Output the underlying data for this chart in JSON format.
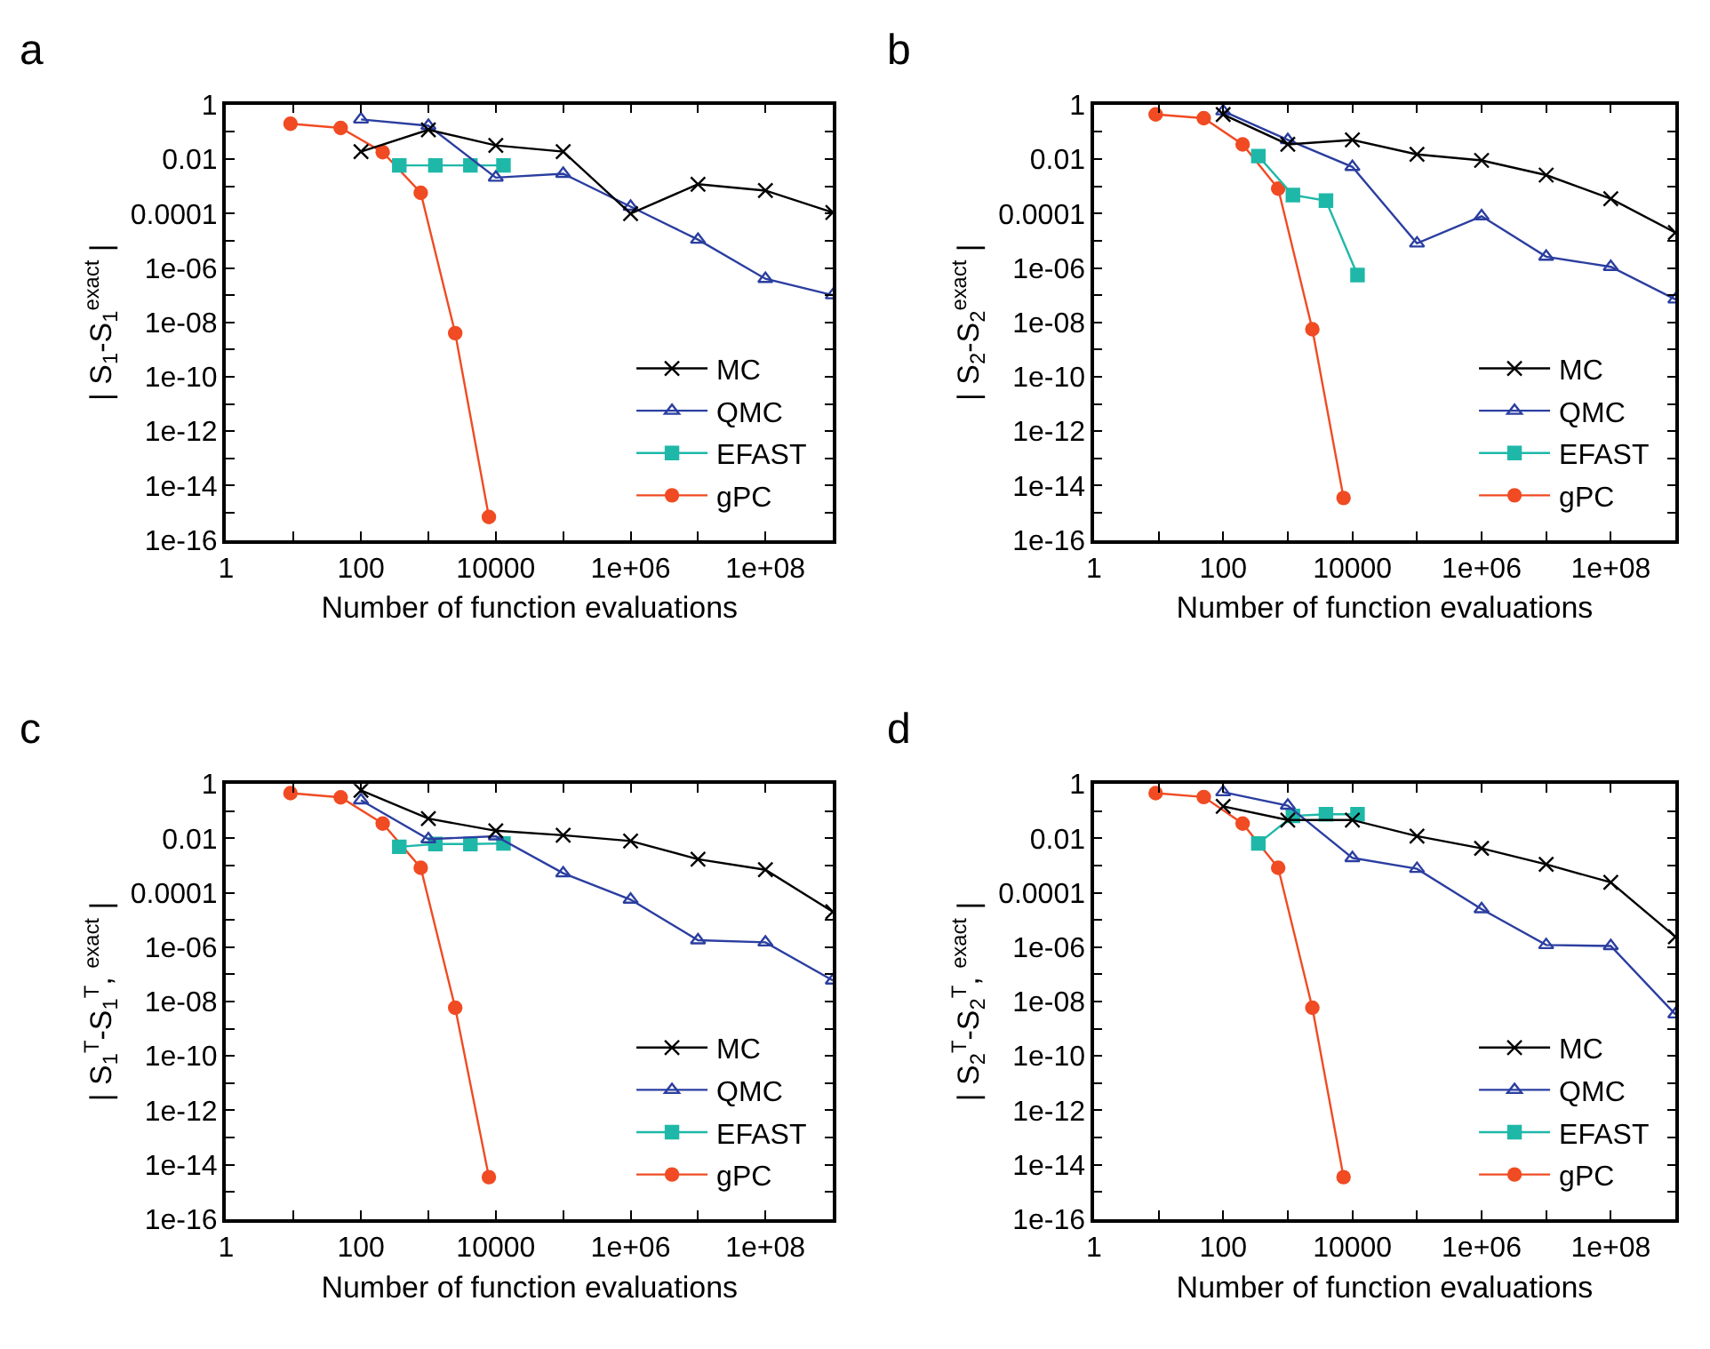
{
  "chart_data": [
    {
      "type": "line",
      "title": "a",
      "xlabel": "Number of function evaluations",
      "ylabel": "| S$_{1}$-S$_{1}$$^{exact}$ |",
      "log": "xy",
      "legend": "bottom right",
      "xlim": [
        1,
        1000000000
      ],
      "ylim": [
        1e-16,
        1
      ],
      "xticks": [
        1,
        {
          "value": 10,
          "label": null
        },
        100,
        {
          "value": 1000,
          "label": null
        },
        10000,
        {
          "value": 100000,
          "label": null
        },
        {
          "value": 1000000,
          "label": "1e+06"
        },
        {
          "value": 10000000,
          "label": null
        },
        {
          "value": 100000000,
          "label": "1e+08"
        }
      ],
      "yticks": [
        {
          "value": 1e-16,
          "label": "1e-16"
        },
        {
          "value": 1e-15,
          "label": null
        },
        {
          "value": 1e-14,
          "label": "1e-14"
        },
        {
          "value": 1e-13,
          "label": null
        },
        {
          "value": 1e-12,
          "label": "1e-12"
        },
        {
          "value": 1e-11,
          "label": null
        },
        {
          "value": 1e-10,
          "label": "1e-10"
        },
        {
          "value": 1e-09,
          "label": null
        },
        {
          "value": 1e-08,
          "label": "1e-08"
        },
        {
          "value": 1e-07,
          "label": null
        },
        {
          "value": 1e-06,
          "label": "1e-06"
        },
        {
          "value": 1e-05,
          "label": null
        },
        0.0001,
        {
          "value": 0.001,
          "label": null
        },
        0.01,
        {
          "value": 0.1,
          "label": null
        },
        1
      ],
      "series": [
        {
          "name": "MC",
          "color": "#000000",
          "marker": "cross",
          "x": [
            100,
            1000,
            10000,
            100000,
            1000000,
            10000000,
            100000000,
            1000000000
          ],
          "values": [
            0.019,
            0.12,
            0.032,
            0.019,
            0.0001,
            0.0012,
            0.0007,
            0.00011
          ]
        },
        {
          "name": "QMC",
          "color": "#2b3ea0",
          "marker": "triangle",
          "x": [
            100,
            1000,
            10000,
            100000,
            1000000,
            10000000,
            100000000,
            1000000000
          ],
          "values": [
            0.29,
            0.17,
            0.0021,
            0.0029,
            0.00018,
            1.1e-05,
            4e-07,
            1e-07
          ]
        },
        {
          "name": "EFAST",
          "color": "#1fb8a8",
          "marker": "square",
          "x": [
            370,
            1270,
            4200,
            13000
          ],
          "values": [
            0.0059,
            0.0059,
            0.0059,
            0.0059
          ]
        },
        {
          "name": "gPC",
          "color": "#f04b23",
          "marker": "circle",
          "x": [
            9,
            50,
            210,
            770,
            2500,
            7900
          ],
          "values": [
            0.2,
            0.14,
            0.018,
            0.00058,
            4e-09,
            7e-16
          ]
        }
      ]
    },
    {
      "type": "line",
      "title": "b",
      "xlabel": "Number of function evaluations",
      "ylabel": "| S$_{2}$-S$_{2}$$^{exact}$ |",
      "log": "xy",
      "legend": "bottom right",
      "xlim": [
        1,
        1000000000
      ],
      "ylim": [
        1e-16,
        1
      ],
      "xticks": [
        1,
        {
          "value": 10,
          "label": null
        },
        100,
        {
          "value": 1000,
          "label": null
        },
        10000,
        {
          "value": 100000,
          "label": null
        },
        {
          "value": 1000000,
          "label": "1e+06"
        },
        {
          "value": 10000000,
          "label": null
        },
        {
          "value": 100000000,
          "label": "1e+08"
        }
      ],
      "yticks": [
        {
          "value": 1e-16,
          "label": "1e-16"
        },
        {
          "value": 1e-15,
          "label": null
        },
        {
          "value": 1e-14,
          "label": "1e-14"
        },
        {
          "value": 1e-13,
          "label": null
        },
        {
          "value": 1e-12,
          "label": "1e-12"
        },
        {
          "value": 1e-11,
          "label": null
        },
        {
          "value": 1e-10,
          "label": "1e-10"
        },
        {
          "value": 1e-09,
          "label": null
        },
        {
          "value": 1e-08,
          "label": "1e-08"
        },
        {
          "value": 1e-07,
          "label": null
        },
        {
          "value": 1e-06,
          "label": "1e-06"
        },
        {
          "value": 1e-05,
          "label": null
        },
        0.0001,
        {
          "value": 0.001,
          "label": null
        },
        0.01,
        {
          "value": 0.1,
          "label": null
        },
        1
      ],
      "series": [
        {
          "name": "MC",
          "color": "#000000",
          "marker": "cross",
          "x": [
            100,
            1000,
            10000,
            100000,
            1000000,
            10000000,
            100000000,
            1000000000
          ],
          "values": [
            0.44,
            0.035,
            0.051,
            0.015,
            0.009,
            0.0026,
            0.00035,
            2e-05
          ]
        },
        {
          "name": "QMC",
          "color": "#2b3ea0",
          "marker": "triangle",
          "x": [
            100,
            1000,
            10000,
            100000,
            1000000,
            10000000,
            100000000,
            1000000000
          ],
          "values": [
            0.58,
            0.051,
            0.0052,
            8e-06,
            8e-05,
            2.6e-06,
            1.1e-06,
            7e-08
          ]
        },
        {
          "name": "EFAST",
          "color": "#1fb8a8",
          "marker": "square",
          "x": [
            350,
            1200,
            3900,
            12000
          ],
          "values": [
            0.013,
            0.00048,
            0.0003,
            5.5e-07
          ]
        },
        {
          "name": "gPC",
          "color": "#f04b23",
          "marker": "circle",
          "x": [
            9,
            50,
            200,
            710,
            2400,
            7300
          ],
          "values": [
            0.44,
            0.32,
            0.035,
            0.00083,
            5.6e-09,
            3.5e-15
          ]
        }
      ]
    },
    {
      "type": "line",
      "title": "c",
      "xlabel": "Number of function evaluations",
      "ylabel": "| S$_{1}$$^{T}$-S$_{1}$$^{T}$, $^{exact}$ |",
      "log": "xy",
      "legend": "bottom right",
      "xlim": [
        1,
        1000000000
      ],
      "ylim": [
        1e-16,
        1
      ],
      "xticks": [
        1,
        {
          "value": 10,
          "label": null
        },
        100,
        {
          "value": 1000,
          "label": null
        },
        10000,
        {
          "value": 100000,
          "label": null
        },
        {
          "value": 1000000,
          "label": "1e+06"
        },
        {
          "value": 10000000,
          "label": null
        },
        {
          "value": 100000000,
          "label": "1e+08"
        }
      ],
      "yticks": [
        {
          "value": 1e-16,
          "label": "1e-16"
        },
        {
          "value": 1e-15,
          "label": null
        },
        {
          "value": 1e-14,
          "label": "1e-14"
        },
        {
          "value": 1e-13,
          "label": null
        },
        {
          "value": 1e-12,
          "label": "1e-12"
        },
        {
          "value": 1e-11,
          "label": null
        },
        {
          "value": 1e-10,
          "label": "1e-10"
        },
        {
          "value": 1e-09,
          "label": null
        },
        {
          "value": 1e-08,
          "label": "1e-08"
        },
        {
          "value": 1e-07,
          "label": null
        },
        {
          "value": 1e-06,
          "label": "1e-06"
        },
        {
          "value": 1e-05,
          "label": null
        },
        0.0001,
        {
          "value": 0.001,
          "label": null
        },
        0.01,
        {
          "value": 0.1,
          "label": null
        },
        1
      ],
      "series": [
        {
          "name": "MC",
          "color": "#000000",
          "marker": "cross",
          "x": [
            100,
            1000,
            10000,
            100000,
            1000000,
            10000000,
            100000000,
            1000000000
          ],
          "values": [
            0.58,
            0.053,
            0.019,
            0.013,
            0.008,
            0.0017,
            0.0007,
            2e-05
          ]
        },
        {
          "name": "QMC",
          "color": "#2b3ea0",
          "marker": "triangle",
          "x": [
            100,
            1000,
            10000,
            100000,
            1000000,
            10000000,
            100000000,
            1000000000
          ],
          "values": [
            0.25,
            0.0093,
            0.012,
            0.00052,
            5.6e-05,
            1.8e-06,
            1.5e-06,
            6e-08
          ]
        },
        {
          "name": "EFAST",
          "color": "#1fb8a8",
          "marker": "square",
          "x": [
            370,
            1270,
            4200,
            13000
          ],
          "values": [
            0.0049,
            0.0062,
            0.0062,
            0.0065
          ]
        },
        {
          "name": "gPC",
          "color": "#f04b23",
          "marker": "circle",
          "x": [
            9,
            50,
            210,
            770,
            2500,
            7900
          ],
          "values": [
            0.46,
            0.32,
            0.035,
            0.00083,
            5.9e-09,
            3.5e-15
          ]
        }
      ]
    },
    {
      "type": "line",
      "title": "d",
      "xlabel": "Number of function evaluations",
      "ylabel": "| S$_{2}$$^{T}$-S$_{2}$$^{T}$, $^{exact}$ |",
      "log": "xy",
      "legend": "bottom right",
      "xlim": [
        1,
        1000000000
      ],
      "ylim": [
        1e-16,
        1
      ],
      "xticks": [
        1,
        {
          "value": 10,
          "label": null
        },
        100,
        {
          "value": 1000,
          "label": null
        },
        10000,
        {
          "value": 100000,
          "label": null
        },
        {
          "value": 1000000,
          "label": "1e+06"
        },
        {
          "value": 10000000,
          "label": null
        },
        {
          "value": 100000000,
          "label": "1e+08"
        }
      ],
      "yticks": [
        {
          "value": 1e-16,
          "label": "1e-16"
        },
        {
          "value": 1e-15,
          "label": null
        },
        {
          "value": 1e-14,
          "label": "1e-14"
        },
        {
          "value": 1e-13,
          "label": null
        },
        {
          "value": 1e-12,
          "label": "1e-12"
        },
        {
          "value": 1e-11,
          "label": null
        },
        {
          "value": 1e-10,
          "label": "1e-10"
        },
        {
          "value": 1e-09,
          "label": null
        },
        {
          "value": 1e-08,
          "label": "1e-08"
        },
        {
          "value": 1e-07,
          "label": null
        },
        {
          "value": 1e-06,
          "label": "1e-06"
        },
        {
          "value": 1e-05,
          "label": null
        },
        0.0001,
        {
          "value": 0.001,
          "label": null
        },
        0.01,
        {
          "value": 0.1,
          "label": null
        },
        1
      ],
      "series": [
        {
          "name": "MC",
          "color": "#000000",
          "marker": "cross",
          "x": [
            100,
            1000,
            10000,
            100000,
            1000000,
            10000000,
            100000000,
            1000000000
          ],
          "values": [
            0.15,
            0.047,
            0.047,
            0.012,
            0.0043,
            0.0011,
            0.00024,
            2.4e-06
          ]
        },
        {
          "name": "QMC",
          "color": "#2b3ea0",
          "marker": "triangle",
          "x": [
            100,
            1000,
            10000,
            100000,
            1000000,
            10000000,
            100000000,
            1000000000
          ],
          "values": [
            0.5,
            0.16,
            0.0019,
            0.00076,
            2.5e-05,
            1.2e-06,
            1.1e-06,
            3.4e-09
          ]
        },
        {
          "name": "EFAST",
          "color": "#1fb8a8",
          "marker": "square",
          "x": [
            350,
            1200,
            3900,
            12000
          ],
          "values": [
            0.0065,
            0.067,
            0.077,
            0.077
          ]
        },
        {
          "name": "gPC",
          "color": "#f04b23",
          "marker": "circle",
          "x": [
            9,
            50,
            200,
            710,
            2400,
            7300
          ],
          "values": [
            0.46,
            0.33,
            0.035,
            0.00083,
            5.9e-09,
            3.5e-15
          ]
        }
      ]
    }
  ]
}
